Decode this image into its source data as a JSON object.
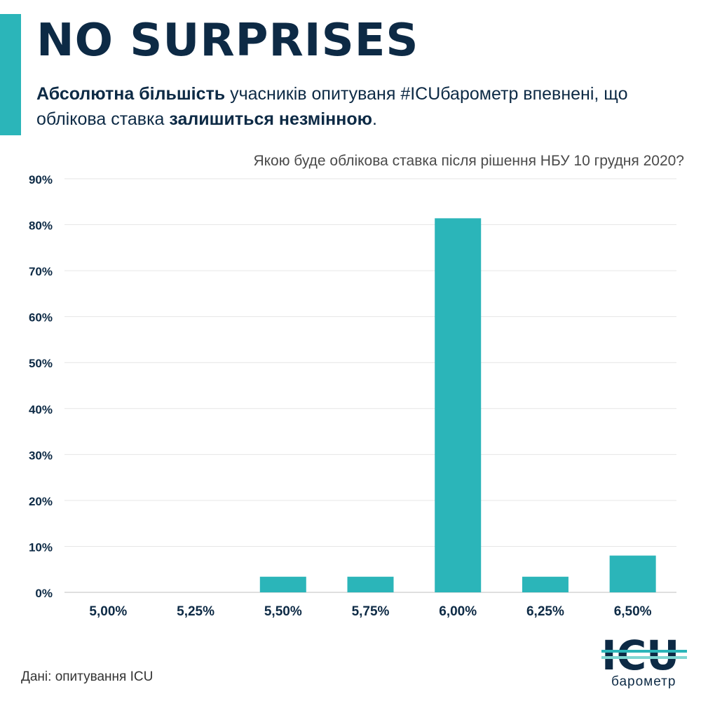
{
  "header": {
    "title": "NO SURPRISES",
    "subtitle_parts": [
      {
        "text": "Абсолютна більшість",
        "bold": true
      },
      {
        "text": " учасників опитуваня #ICUбарометр впевнені, що облікова ставка ",
        "bold": false
      },
      {
        "text": "залишиться незмінною",
        "bold": true
      },
      {
        "text": ".",
        "bold": false
      }
    ]
  },
  "chart_data": {
    "type": "bar",
    "title": "Якою буде облікова ставка після рішення НБУ 10 грудня 2020?",
    "categories": [
      "5,00%",
      "5,25%",
      "5,50%",
      "5,75%",
      "6,00%",
      "6,25%",
      "6,50%"
    ],
    "values": [
      0,
      0,
      3.4,
      3.4,
      81.4,
      3.4,
      8.0
    ],
    "ylim": [
      0,
      90
    ],
    "yticks": [
      "0%",
      "10%",
      "20%",
      "30%",
      "40%",
      "50%",
      "60%",
      "70%",
      "80%",
      "90%"
    ],
    "grid": true,
    "colors": {
      "bar": "#2bb5b9",
      "grid": "#e6e6e6",
      "axis_text": "#0d2a45"
    }
  },
  "footer": {
    "source": "Дані: опитування ICU",
    "logo_text": "ICU",
    "logo_subtext": "барометр",
    "logo_colors": {
      "dark": "#0d2a45",
      "stripe1": "#2bb5b9",
      "stripe2": "#7fd6d2"
    }
  }
}
